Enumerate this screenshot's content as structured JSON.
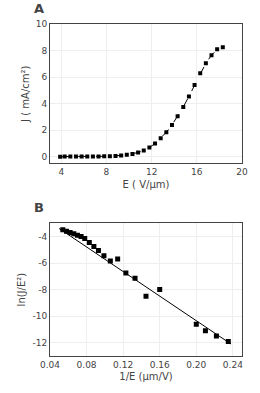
{
  "chart_data": [
    {
      "type": "line",
      "title": "A",
      "xlabel": "E ( V/μm)",
      "ylabel": "J ( mA/cm²)",
      "xlim": [
        3.0,
        20.0
      ],
      "ylim": [
        -0.5,
        10
      ],
      "xticks": [
        4,
        8,
        12,
        16,
        20
      ],
      "yticks": [
        0,
        2,
        4,
        6,
        8,
        10
      ],
      "x": [
        3.9,
        4.3,
        4.8,
        5.3,
        5.8,
        6.3,
        6.8,
        7.3,
        7.8,
        8.3,
        8.8,
        9.3,
        9.8,
        10.3,
        10.8,
        11.3,
        11.8,
        12.3,
        12.8,
        13.3,
        13.8,
        14.3,
        14.8,
        15.3,
        15.8,
        16.3,
        16.8,
        17.3,
        17.8,
        18.3
      ],
      "series": [
        {
          "color": "#000000",
          "marker": "square",
          "line_style": "dashed",
          "values": [
            0.0,
            0.03,
            0.03,
            0.03,
            0.02,
            0.03,
            0.02,
            0.03,
            0.04,
            0.05,
            0.06,
            0.1,
            0.16,
            0.22,
            0.32,
            0.48,
            0.7,
            1.0,
            1.4,
            1.85,
            2.4,
            3.05,
            3.75,
            4.55,
            5.4,
            6.3,
            7.05,
            7.65,
            8.1,
            8.25
          ]
        }
      ]
    },
    {
      "type": "scatter",
      "title": "B",
      "xlabel": "1/E (μm/V)",
      "ylabel": "ln(J/E²)",
      "xlim": [
        0.04,
        0.25
      ],
      "ylim": [
        -13,
        -3
      ],
      "xticks": [
        0.04,
        0.08,
        0.12,
        0.16,
        {
          "value": 0.2,
          "label": "0.20"
        },
        0.24
      ],
      "yticks": [
        -12,
        -10,
        -8,
        -6,
        -4
      ],
      "series": [
        {
          "type": "scatter",
          "color": "#000000",
          "marker": "square",
          "x": [
            0.054,
            0.058,
            0.062,
            0.066,
            0.07,
            0.074,
            0.078,
            0.083,
            0.088,
            0.093,
            0.099,
            0.106,
            0.114,
            0.123,
            0.133,
            0.145,
            0.16,
            0.2,
            0.21,
            0.222,
            0.235
          ],
          "values": [
            -3.5,
            -3.6,
            -3.7,
            -3.8,
            -3.9,
            -4.0,
            -4.15,
            -4.45,
            -4.75,
            -5.05,
            -5.45,
            -5.85,
            -5.7,
            -6.75,
            -7.15,
            -8.5,
            -8.0,
            -10.6,
            -11.1,
            -11.5,
            -11.9
          ]
        },
        {
          "type": "line",
          "color": "#000000",
          "line_style": "solid",
          "x": [
            0.05,
            0.238
          ],
          "values": [
            -3.4,
            -12.1
          ]
        }
      ]
    }
  ]
}
